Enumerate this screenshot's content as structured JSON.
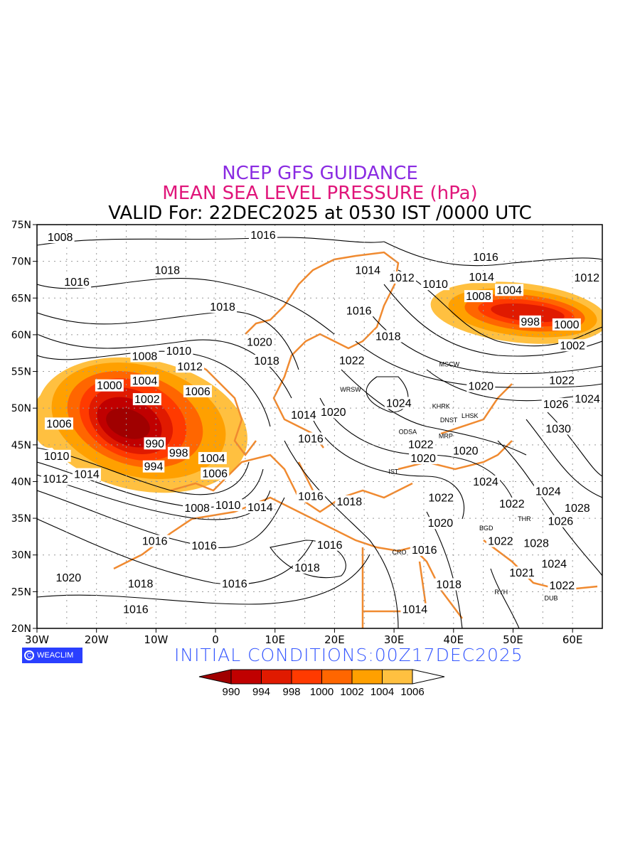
{
  "title": {
    "line1": "NCEP GFS GUIDANCE",
    "line2": "MEAN SEA LEVEL PRESSURE (hPa)",
    "line3": "VALID For: 22DEC2025 at 0530 IST /0000 UTC"
  },
  "footer": {
    "logo": "WEACLIM",
    "logo_symbol": "C",
    "initial": "INITIAL  CONDITIONS:00Z17DEC2025"
  },
  "axes": {
    "lon_ticks": [
      {
        "v": -30,
        "label": "30W"
      },
      {
        "v": -20,
        "label": "20W"
      },
      {
        "v": -10,
        "label": "10W"
      },
      {
        "v": 0,
        "label": "0"
      },
      {
        "v": 10,
        "label": "10E"
      },
      {
        "v": 20,
        "label": "20E"
      },
      {
        "v": 30,
        "label": "30E"
      },
      {
        "v": 40,
        "label": "40E"
      },
      {
        "v": 50,
        "label": "50E"
      },
      {
        "v": 60,
        "label": "60E"
      }
    ],
    "lat_ticks": [
      {
        "v": 75,
        "label": "75N"
      },
      {
        "v": 70,
        "label": "70N"
      },
      {
        "v": 65,
        "label": "65N"
      },
      {
        "v": 60,
        "label": "60N"
      },
      {
        "v": 55,
        "label": "55N"
      },
      {
        "v": 50,
        "label": "50N"
      },
      {
        "v": 45,
        "label": "45N"
      },
      {
        "v": 40,
        "label": "40N"
      },
      {
        "v": 35,
        "label": "35N"
      },
      {
        "v": 30,
        "label": "30N"
      },
      {
        "v": 25,
        "label": "25N"
      },
      {
        "v": 20,
        "label": "20N"
      }
    ],
    "lon_range": [
      -30,
      65
    ],
    "lat_range": [
      20,
      75
    ]
  },
  "colorbar": {
    "levels": [
      "990",
      "994",
      "998",
      "1000",
      "1002",
      "1004",
      "1006"
    ],
    "colors": [
      "#a00000",
      "#c00000",
      "#e01a00",
      "#ff3a00",
      "#ff6600",
      "#ffa000",
      "#ffc040",
      "#ffffff"
    ]
  },
  "contour_labels": [
    {
      "v": "1008",
      "lon": -26.1,
      "lat": 73.3
    },
    {
      "v": "1016",
      "lon": -23.3,
      "lat": 67.2
    },
    {
      "v": "1016",
      "lon": 8,
      "lat": 73.6
    },
    {
      "v": "1018",
      "lon": -8.1,
      "lat": 68.8
    },
    {
      "v": "1018",
      "lon": 1.2,
      "lat": 63.8
    },
    {
      "v": "1014",
      "lon": 25.6,
      "lat": 68.8
    },
    {
      "v": "1012",
      "lon": 31.3,
      "lat": 67.8
    },
    {
      "v": "1010",
      "lon": 34.3,
      "lat": 66.9
    },
    {
      "v": "1016",
      "lon": 45.4,
      "lat": 70.6
    },
    {
      "v": "1014",
      "lon": 44.7,
      "lat": 69.7
    },
    {
      "v": "1008",
      "lon": 44.2,
      "lat": 67.1
    },
    {
      "v": "1004",
      "lon": 44.1,
      "lat": 66.1
    },
    {
      "v": "1012",
      "lon": 62.4,
      "lat": 67.8
    },
    {
      "v": "998",
      "lon": 52.9,
      "lat": 61.8
    },
    {
      "v": "1000",
      "lon": 59,
      "lat": 61.4
    },
    {
      "v": "1002",
      "lon": 60,
      "lat": 60.4
    },
    {
      "v": "1016",
      "lon": 24.1,
      "lat": 63.3
    },
    {
      "v": "1018",
      "lon": 29,
      "lat": 59.8
    },
    {
      "v": "1020",
      "lon": 7.4,
      "lat": 59
    },
    {
      "v": "1018",
      "lon": 8.6,
      "lat": 58.3
    },
    {
      "v": "1022",
      "lon": 22.9,
      "lat": 56.5
    },
    {
      "v": "1020",
      "lon": 44.6,
      "lat": 53
    },
    {
      "v": "1022",
      "lon": 58.2,
      "lat": 53.8
    },
    {
      "v": "1026",
      "lon": 57.2,
      "lat": 52.4
    },
    {
      "v": "1024",
      "lon": 60,
      "lat": 53.1
    },
    {
      "v": "1030",
      "lon": 57.6,
      "lat": 50.9
    },
    {
      "v": "1008",
      "lon": -11.9,
      "lat": 57.1
    },
    {
      "v": "1010",
      "lon": -8.8,
      "lat": 57.8
    },
    {
      "v": "1012",
      "lon": -4.3,
      "lat": 57.5
    },
    {
      "v": "1004",
      "lon": -11.9,
      "lat": 55.6
    },
    {
      "v": "1002",
      "lon": -11.5,
      "lat": 54.9
    },
    {
      "v": "1000",
      "lon": -15.2,
      "lat": 53.1
    },
    {
      "v": "1006",
      "lon": -3,
      "lat": 52.3
    },
    {
      "v": "1006",
      "lon": -26.3,
      "lat": 47.9
    },
    {
      "v": "990",
      "lon": -10.2,
      "lat": 45.2
    },
    {
      "v": "994",
      "lon": -10.4,
      "lat": 43.9
    },
    {
      "v": "998",
      "lon": -6.2,
      "lat": 43.9
    },
    {
      "v": "1004",
      "lon": -0.5,
      "lat": 43.2
    },
    {
      "v": "1006",
      "lon": -0.1,
      "lat": 41.1
    },
    {
      "v": "1010",
      "lon": -26.7,
      "lat": 43.5
    },
    {
      "v": "1012",
      "lon": -26.9,
      "lat": 42.2
    },
    {
      "v": "1014",
      "lon": -26.9,
      "lat": 41
    },
    {
      "v": "1014",
      "lon": 14.8,
      "lat": 49.1
    },
    {
      "v": "1016",
      "lon": 16,
      "lat": 47.7
    },
    {
      "v": "1020",
      "lon": 19.8,
      "lat": 49.5
    },
    {
      "v": "1024",
      "lon": 30.8,
      "lat": 50.7
    },
    {
      "v": "1022",
      "lon": 34.5,
      "lat": 45.1
    },
    {
      "v": "1020",
      "lon": 34.9,
      "lat": 43.2
    },
    {
      "v": "1020",
      "lon": 39.4,
      "lat": 44.2
    },
    {
      "v": "1024",
      "lon": 45.4,
      "lat": 40
    },
    {
      "v": "1022",
      "lon": 37.9,
      "lat": 37.8
    },
    {
      "v": "1020",
      "lon": 37.8,
      "lat": 36.2
    },
    {
      "v": "1022",
      "lon": 49.8,
      "lat": 37
    },
    {
      "v": "1024",
      "lon": 55.9,
      "lat": 38.7
    },
    {
      "v": "1028",
      "lon": 60.8,
      "lat": 36.4
    },
    {
      "v": "1026",
      "lon": 58,
      "lat": 34.6
    },
    {
      "v": "1028",
      "lon": 53.9,
      "lat": 31.6
    },
    {
      "v": "1022",
      "lon": 47.9,
      "lat": 31.9
    },
    {
      "v": "1024",
      "lon": 56.9,
      "lat": 28.8
    },
    {
      "v": "1021",
      "lon": 51.5,
      "lat": 27.6
    },
    {
      "v": "1022",
      "lon": 55.6,
      "lat": 27.7
    },
    {
      "v": "1016",
      "lon": 35.1,
      "lat": 30.7
    },
    {
      "v": "1018",
      "lon": 39.2,
      "lat": 26
    },
    {
      "v": "1014",
      "lon": 33.5,
      "lat": 22.6
    },
    {
      "v": "1016",
      "lon": 19.2,
      "lat": 31.4
    },
    {
      "v": "1018",
      "lon": 15.4,
      "lat": 28.3
    },
    {
      "v": "1016",
      "lon": 3.2,
      "lat": 26.1
    },
    {
      "v": "1018",
      "lon": -12.6,
      "lat": 26.1
    },
    {
      "v": "1016",
      "lon": -13.4,
      "lat": 22.6
    },
    {
      "v": "1020",
      "lon": -24.7,
      "lat": 26.9
    },
    {
      "v": "1016",
      "lon": -10.2,
      "lat": 31.9
    },
    {
      "v": "1016",
      "lon": -1.9,
      "lat": 31.3
    },
    {
      "v": "1008",
      "lon": -3.1,
      "lat": 36.4
    },
    {
      "v": "1010",
      "lon": 2.1,
      "lat": 36.8
    },
    {
      "v": "1014",
      "lon": 7.5,
      "lat": 36.5
    },
    {
      "v": "1016",
      "lon": 16,
      "lat": 38
    },
    {
      "v": "1018",
      "lon": 22.5,
      "lat": 37.3
    }
  ],
  "cities": [
    {
      "v": "MSCW",
      "lon": 39.3,
      "lat": 56
    },
    {
      "v": "WRSW",
      "lon": 22.7,
      "lat": 52.6
    },
    {
      "v": "KHRK",
      "lon": 37.9,
      "lat": 50.3
    },
    {
      "v": "DNST",
      "lon": 39.2,
      "lat": 48.4
    },
    {
      "v": "LHSK",
      "lon": 40.9,
      "lat": 49
    },
    {
      "v": "MRP",
      "lon": 38.7,
      "lat": 47.5
    },
    {
      "v": "ODSA",
      "lon": 32.3,
      "lat": 46.8
    },
    {
      "v": "IST",
      "lon": 29.9,
      "lat": 41.4
    },
    {
      "v": "CRO",
      "lon": 32.3,
      "lat": 30.4
    },
    {
      "v": "BGD",
      "lon": 45.5,
      "lat": 33.7
    },
    {
      "v": "THR",
      "lon": 51.9,
      "lat": 36.2
    },
    {
      "v": "RYH",
      "lon": 48,
      "lat": 25
    },
    {
      "v": "DUB",
      "lon": 56.4,
      "lat": 25.4
    }
  ]
}
